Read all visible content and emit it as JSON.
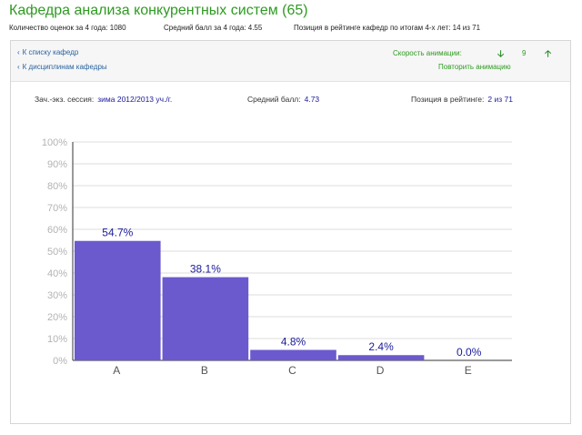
{
  "header": {
    "title": "Кафедра анализа конкурентных систем (65)",
    "stats": {
      "grades_count": "Количество оценок за 4 года: 1080",
      "avg_grade": "Средний балл за 4 года: 4.55",
      "rating_position": "Позиция в рейтинге кафедр по итогам 4-х лет: 14 из 71"
    }
  },
  "toolbar": {
    "back_to_departments": "К списку кафедр",
    "back_to_disciplines": "К дисциплинам кафедры",
    "animation_speed_label": "Скорость анимации:",
    "animation_speed_value": "9",
    "slower_icon": "arrow-down-icon",
    "faster_icon": "arrow-up-icon",
    "repeat_animation": "Повторить анимацию"
  },
  "session_info": {
    "session_label": "Зач.-экз. сессия:",
    "session_value": "зима 2012/2013 уч./г.",
    "avg_label": "Средний балл:",
    "avg_value": "4.73",
    "rank_label": "Позиция в рейтинге:",
    "rank_value": "2 из 71"
  },
  "colors": {
    "accent_green": "#2e9a22",
    "link_blue": "#2a64a0",
    "bar_fill": "#6a5acd",
    "value_navy": "#1a1a9a"
  },
  "chart_data": {
    "type": "bar",
    "categories": [
      "A",
      "B",
      "C",
      "D",
      "E"
    ],
    "values": [
      54.7,
      38.1,
      4.8,
      2.4,
      0.0
    ],
    "data_labels": [
      "54.7%",
      "38.1%",
      "4.8%",
      "2.4%",
      "0.0%"
    ],
    "y_ticks": [
      "0%",
      "10%",
      "20%",
      "30%",
      "40%",
      "50%",
      "60%",
      "70%",
      "80%",
      "90%",
      "100%"
    ],
    "ylim": [
      0,
      100
    ],
    "grid": true,
    "title": "",
    "xlabel": "",
    "ylabel": ""
  }
}
